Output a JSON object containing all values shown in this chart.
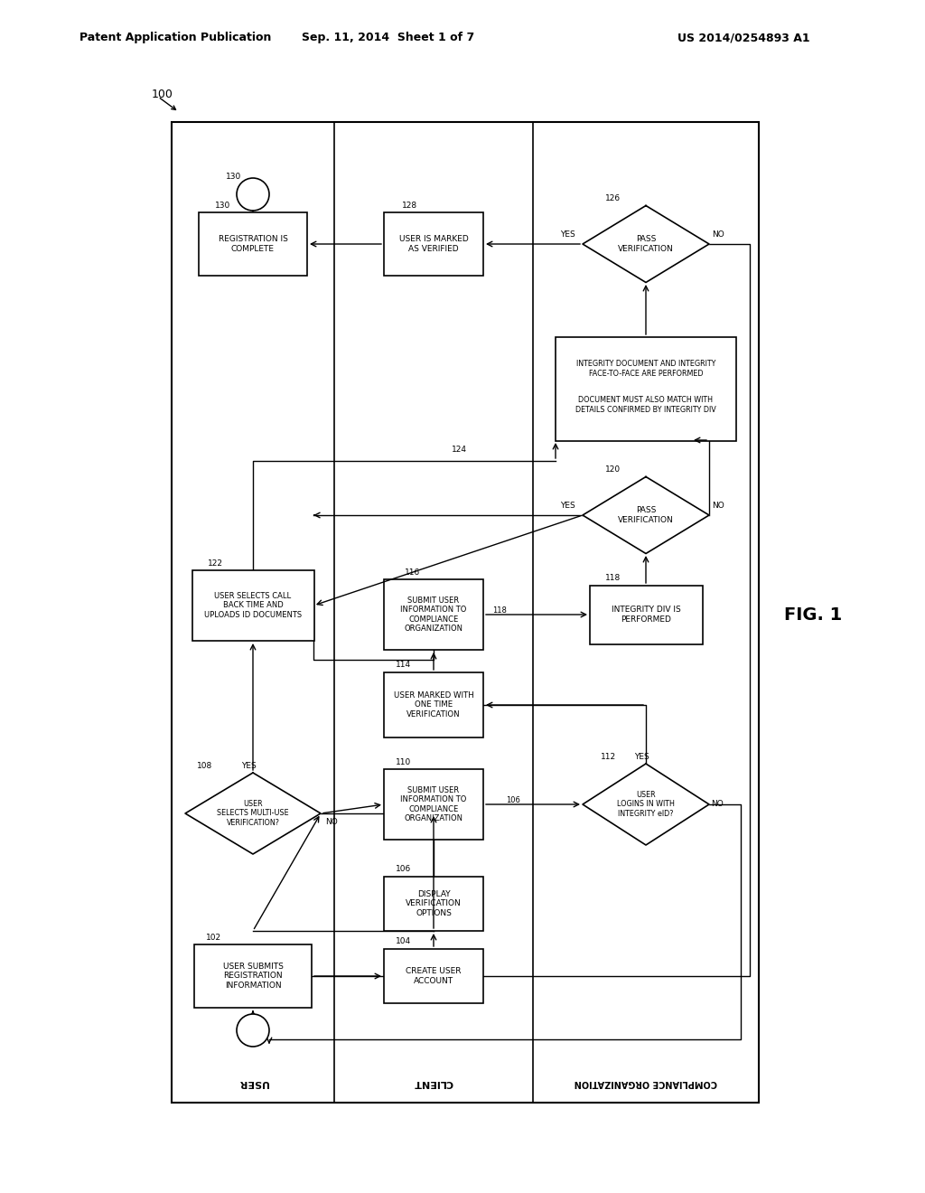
{
  "header_left": "Patent Application Publication",
  "header_mid": "Sep. 11, 2014  Sheet 1 of 7",
  "header_right": "US 2014/0254893 A1",
  "fig_label": "FIG. 1",
  "bg_color": "#ffffff"
}
